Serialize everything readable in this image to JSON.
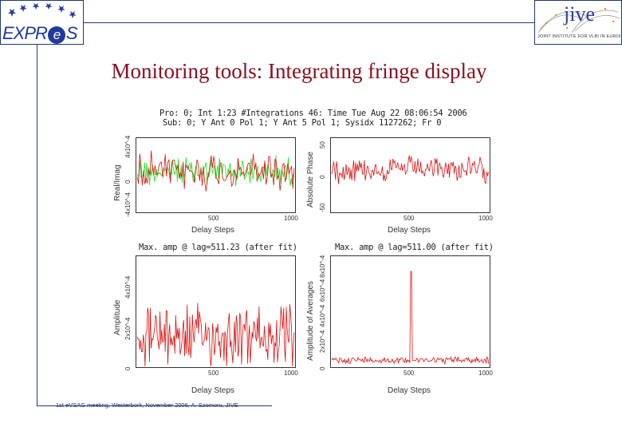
{
  "logos": {
    "left_text": "EXPR",
    "left_e": "e",
    "left_tail": "S",
    "right_word": "jive",
    "right_sub": "JOINT INSTITUTE FOR VLBI IN EUROPE"
  },
  "title": "Monitoring tools: Integrating fringe display",
  "footer": "1st eVSAG meeting, Westerbork, November 2006, A. Szomoru, JIVE",
  "figure": {
    "header_line1": "Pro: 0; Int 1:23 #Integrations 46: Time Tue Aug 22 08:06:54 2006",
    "header_line2": "Sub: 0; Y Ant 0 Pol 1; Y Ant 5 Pol 1; Sysidx 1127262; Fr 0",
    "series_colors": {
      "real": "#dd1111",
      "imag": "#22dd22",
      "phase": "#dd1111",
      "amp": "#dd1111"
    },
    "panels": [
      {
        "ylabel": "Real/Imag",
        "xlabel": "Delay Steps",
        "xticks": [
          "500",
          "1000"
        ],
        "yticks": [
          "-4x10^-4",
          "0",
          "4x10^-4"
        ]
      },
      {
        "ylabel": "Absolute Phase",
        "xlabel": "Delay Steps",
        "xticks": [
          "500",
          "1000"
        ],
        "yticks": [
          "-50",
          "0",
          "50"
        ]
      },
      {
        "title": "Max. amp @ lag=511.23 (after fit)",
        "ylabel": "Amplitude",
        "xlabel": "Delay Steps",
        "xticks": [
          "500",
          "1000"
        ],
        "yticks": [
          "0",
          "2x10^-4",
          "4x10^-4"
        ]
      },
      {
        "title": "Max. amp @ lag=511.00 (after fit)",
        "ylabel": "Amplitude of Averages",
        "xlabel": "Delay Steps",
        "xticks": [
          "500",
          "1000"
        ],
        "yticks": [
          "0",
          "2x10^-4",
          "4x10^-4",
          "6x10^-4",
          "8x10^-4"
        ]
      }
    ]
  }
}
